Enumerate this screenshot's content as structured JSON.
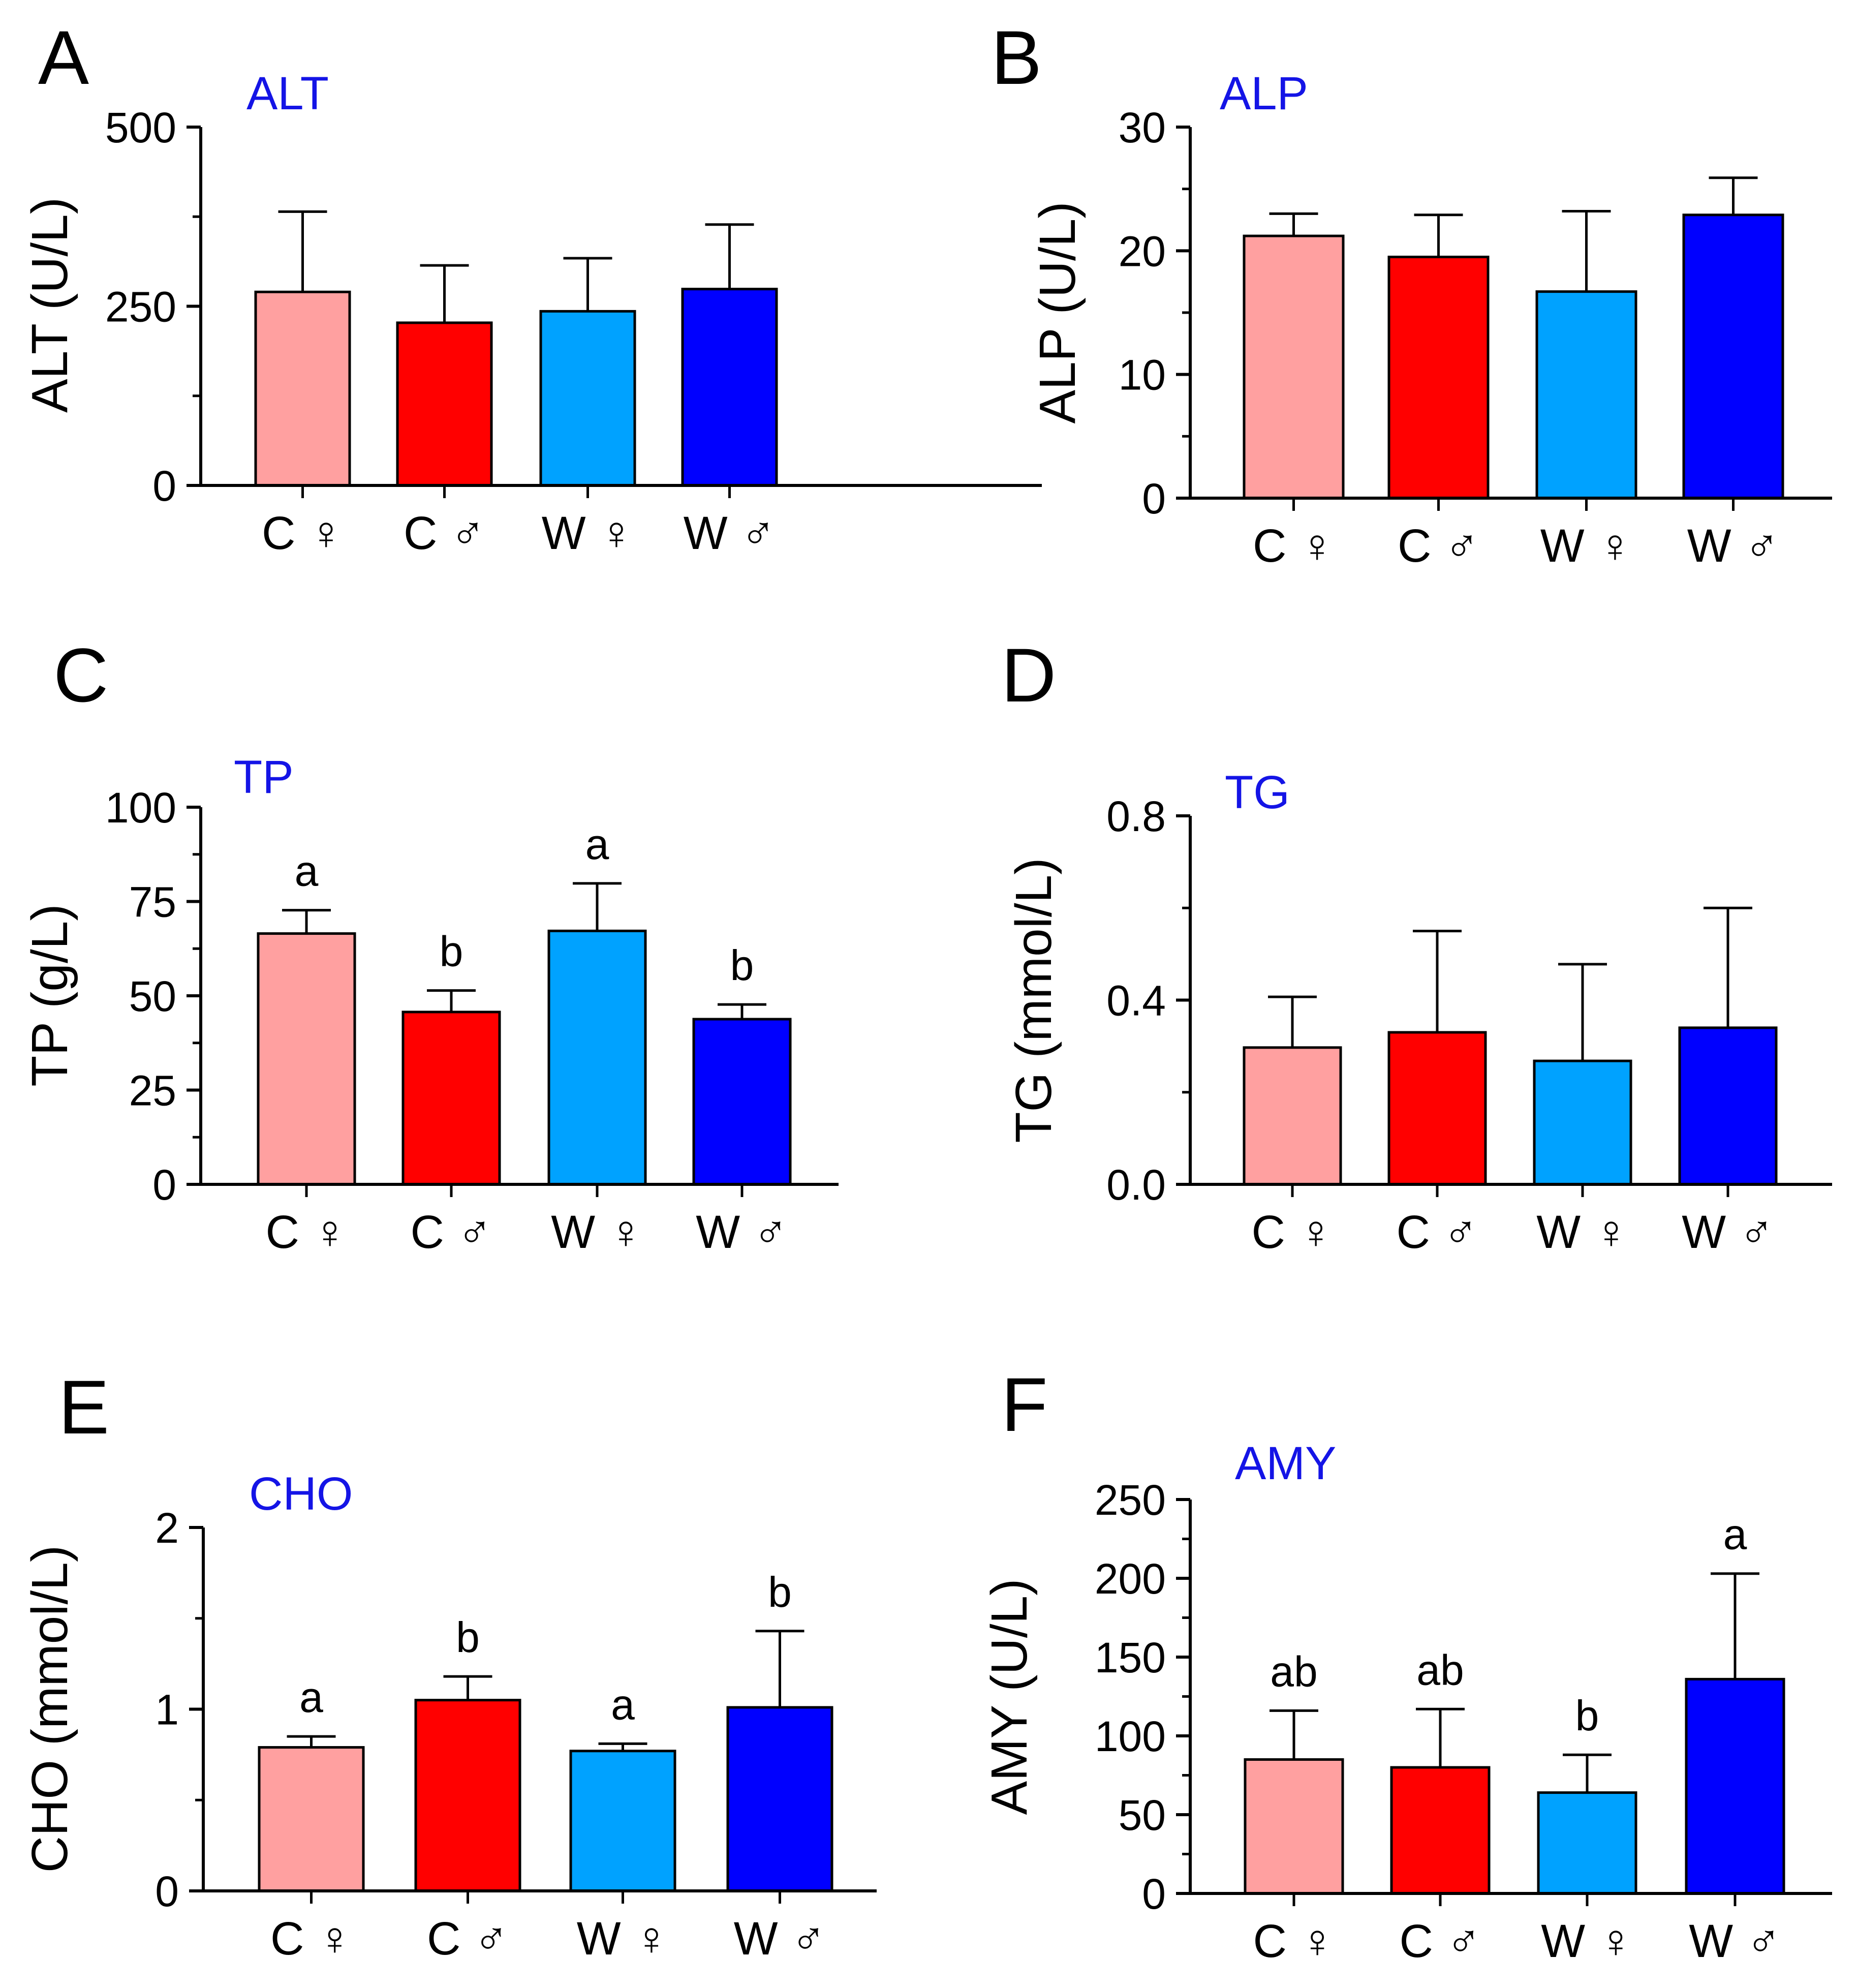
{
  "chart_data": [
    {
      "panel": "A",
      "type": "bar",
      "title": "ALT",
      "ylabel": "ALT (U/L)",
      "categories": [
        "C ♀",
        "C ♂",
        "W ♀",
        "W ♂"
      ],
      "ylim": [
        0,
        500
      ],
      "yticks": [
        0,
        250,
        500
      ],
      "ytick_labels": [
        "0",
        "250",
        "500"
      ],
      "values": [
        270,
        227,
        243,
        274
      ],
      "errors": [
        112,
        80,
        74,
        90
      ],
      "sig_labels": [
        "",
        "",
        "",
        ""
      ],
      "colors": [
        "#ffa0a0",
        "#ff0000",
        "#00a2ff",
        "#0000ff"
      ]
    },
    {
      "panel": "B",
      "type": "bar",
      "title": "ALP",
      "ylabel": "ALP (U/L)",
      "categories": [
        "C ♀",
        "C ♂",
        "W ♀",
        "W ♂"
      ],
      "ylim": [
        0,
        30
      ],
      "yticks": [
        0,
        10,
        20,
        30
      ],
      "ytick_labels": [
        "0",
        "10",
        "20",
        "30"
      ],
      "values": [
        21.2,
        19.5,
        16.7,
        22.9
      ],
      "errors": [
        1.8,
        3.4,
        6.5,
        3.0
      ],
      "sig_labels": [
        "",
        "",
        "",
        ""
      ],
      "colors": [
        "#ffa0a0",
        "#ff0000",
        "#00a2ff",
        "#0000ff"
      ]
    },
    {
      "panel": "C",
      "type": "bar",
      "title": "TP",
      "ylabel": "TP (g/L)",
      "categories": [
        "C ♀",
        "C ♂",
        "W ♀",
        "W ♂"
      ],
      "ylim": [
        0,
        100
      ],
      "yticks": [
        0,
        25,
        50,
        75,
        100
      ],
      "ytick_labels": [
        "0",
        "25",
        "50",
        "75",
        "100"
      ],
      "values": [
        66.5,
        45.7,
        67.2,
        43.8
      ],
      "errors": [
        6.2,
        5.7,
        12.6,
        3.9
      ],
      "sig_labels": [
        "a",
        "b",
        "a",
        "b"
      ],
      "colors": [
        "#ffa0a0",
        "#ff0000",
        "#00a2ff",
        "#0000ff"
      ]
    },
    {
      "panel": "D",
      "type": "bar",
      "title": "TG",
      "ylabel": "TG (mmol/L)",
      "categories": [
        "C ♀",
        "C ♂",
        "W ♀",
        "W ♂"
      ],
      "ylim": [
        0,
        0.8
      ],
      "yticks": [
        0,
        0.4,
        0.8
      ],
      "ytick_labels": [
        "0.0",
        "0.4",
        "0.8"
      ],
      "values": [
        0.297,
        0.33,
        0.268,
        0.34
      ],
      "errors": [
        0.11,
        0.22,
        0.21,
        0.26
      ],
      "sig_labels": [
        "",
        "",
        "",
        ""
      ],
      "colors": [
        "#ffa0a0",
        "#ff0000",
        "#00a2ff",
        "#0000ff"
      ]
    },
    {
      "panel": "E",
      "type": "bar",
      "title": "CHO",
      "ylabel": "CHO (mmol/L)",
      "categories": [
        "C ♀",
        "C ♂",
        "W ♀",
        "W ♂"
      ],
      "ylim": [
        0,
        2
      ],
      "yticks": [
        0,
        1,
        2
      ],
      "ytick_labels": [
        "0",
        "1",
        "2"
      ],
      "values": [
        0.79,
        1.05,
        0.77,
        1.01
      ],
      "errors": [
        0.06,
        0.13,
        0.04,
        0.42
      ],
      "sig_labels": [
        "a",
        "b",
        "a",
        "b"
      ],
      "colors": [
        "#ffa0a0",
        "#ff0000",
        "#00a2ff",
        "#0000ff"
      ]
    },
    {
      "panel": "F",
      "type": "bar",
      "title": "AMY",
      "ylabel": "AMY (U/L)",
      "categories": [
        "C ♀",
        "C ♂",
        "W ♀",
        "W ♂"
      ],
      "ylim": [
        0,
        250
      ],
      "yticks": [
        0,
        50,
        100,
        150,
        200,
        250
      ],
      "ytick_labels": [
        "0",
        "50",
        "100",
        "150",
        "200",
        "250"
      ],
      "values": [
        85,
        80,
        64,
        136
      ],
      "errors": [
        31,
        37,
        24,
        67
      ],
      "sig_labels": [
        "ab",
        "ab",
        "b",
        "a"
      ],
      "colors": [
        "#ffa0a0",
        "#ff0000",
        "#00a2ff",
        "#0000ff"
      ]
    }
  ]
}
